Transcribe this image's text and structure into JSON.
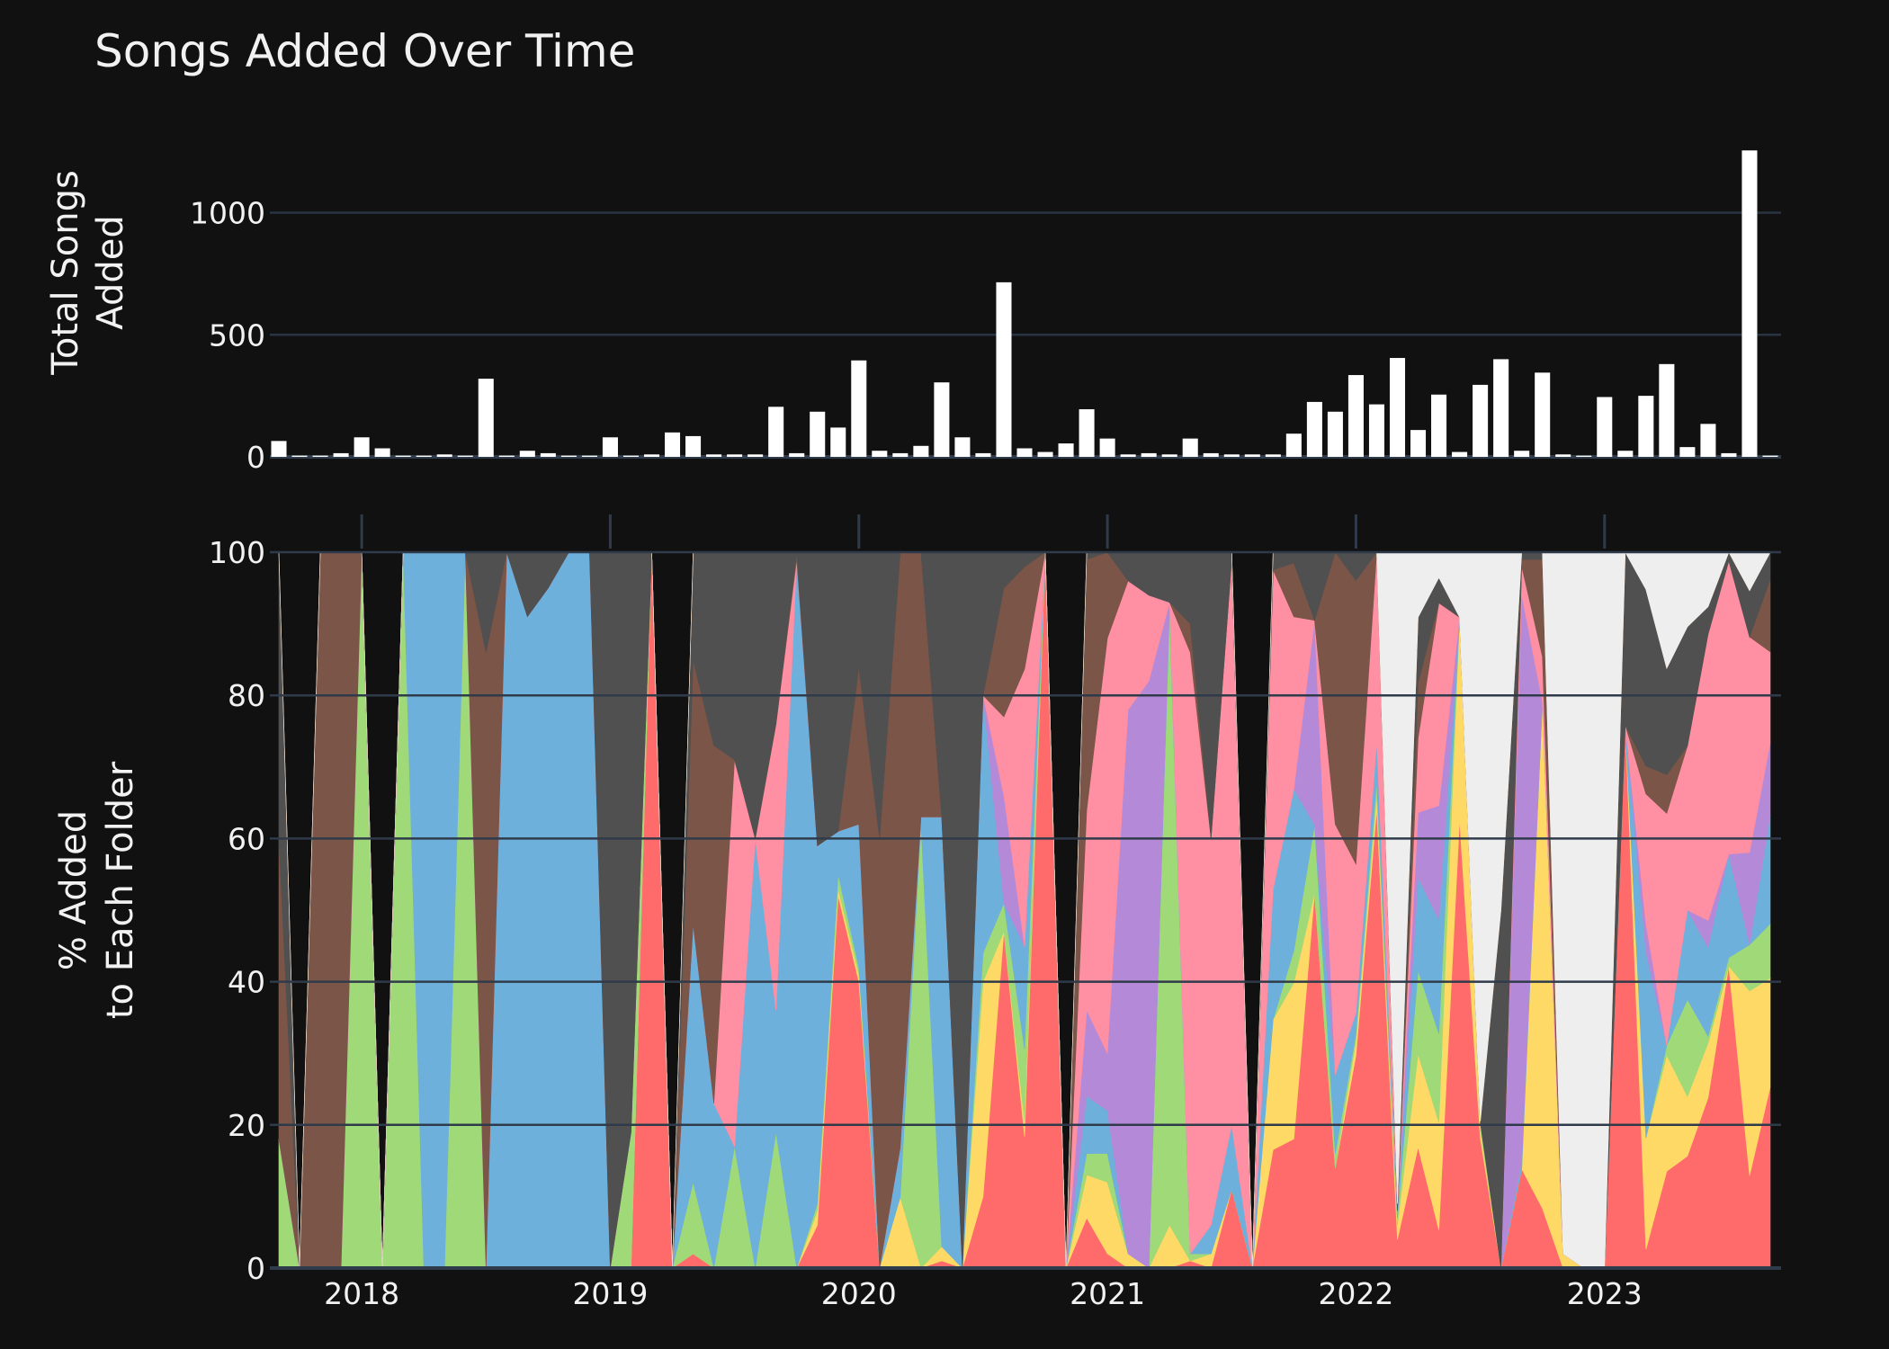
{
  "chart_data": [
    {
      "type": "bar",
      "title": "Songs Added Over Time",
      "ylabel": "Total Songs Added",
      "xlabel": "",
      "ylim": [
        0,
        1250
      ],
      "yticks": [
        0,
        500,
        1000
      ],
      "x_ticks": [
        "2018",
        "2019",
        "2020",
        "2021",
        "2022",
        "2023"
      ],
      "x": [
        "2017-09",
        "2017-10",
        "2017-11",
        "2017-12",
        "2018-01",
        "2018-02",
        "2018-03",
        "2018-04",
        "2018-05",
        "2018-06",
        "2018-07",
        "2018-08",
        "2018-09",
        "2018-10",
        "2018-11",
        "2018-12",
        "2019-01",
        "2019-02",
        "2019-03",
        "2019-04",
        "2019-05",
        "2019-06",
        "2019-07",
        "2019-08",
        "2019-09",
        "2019-10",
        "2019-11",
        "2019-12",
        "2020-01",
        "2020-02",
        "2020-03",
        "2020-04",
        "2020-05",
        "2020-06",
        "2020-07",
        "2020-08",
        "2020-09",
        "2020-10",
        "2020-11",
        "2020-12",
        "2021-01",
        "2021-02",
        "2021-03",
        "2021-04",
        "2021-05",
        "2021-06",
        "2021-07",
        "2021-08",
        "2021-09",
        "2021-10",
        "2021-11",
        "2021-12",
        "2022-01",
        "2022-02",
        "2022-03",
        "2022-04",
        "2022-05",
        "2022-06",
        "2022-07",
        "2022-08",
        "2022-09",
        "2022-10",
        "2022-11",
        "2022-12",
        "2023-01",
        "2023-02",
        "2023-03",
        "2023-04",
        "2023-05",
        "2023-06",
        "2023-07",
        "2023-08",
        "2023-09"
      ],
      "values": [
        65,
        5,
        5,
        15,
        80,
        35,
        5,
        5,
        10,
        5,
        320,
        5,
        25,
        15,
        5,
        5,
        80,
        5,
        10,
        100,
        85,
        10,
        10,
        10,
        205,
        15,
        185,
        120,
        395,
        25,
        15,
        45,
        305,
        80,
        15,
        715,
        35,
        20,
        55,
        195,
        75,
        10,
        15,
        10,
        75,
        15,
        10,
        10,
        10,
        95,
        225,
        185,
        335,
        215,
        405,
        110,
        255,
        20,
        295,
        400,
        25,
        345,
        10,
        5,
        245,
        25,
        250,
        380,
        40,
        135,
        15,
        1255,
        5
      ],
      "grid": true,
      "bar_color": "#ffffff"
    },
    {
      "type": "area",
      "stacked": true,
      "normalized": true,
      "ylabel": "% Added to Each Folder",
      "xlabel": "",
      "ylim": [
        0,
        100
      ],
      "yticks": [
        0,
        20,
        40,
        60,
        80,
        100
      ],
      "x_ticks": [
        "2018",
        "2019",
        "2020",
        "2021",
        "2022",
        "2023"
      ],
      "grid": true,
      "x": [
        "2017-09",
        "2017-10",
        "2017-11",
        "2017-12",
        "2018-01",
        "2018-02",
        "2018-03",
        "2018-04",
        "2018-05",
        "2018-06",
        "2018-07",
        "2018-08",
        "2018-09",
        "2018-10",
        "2018-11",
        "2018-12",
        "2019-01",
        "2019-02",
        "2019-03",
        "2019-04",
        "2019-05",
        "2019-06",
        "2019-07",
        "2019-08",
        "2019-09",
        "2019-10",
        "2019-11",
        "2019-12",
        "2020-01",
        "2020-02",
        "2020-03",
        "2020-04",
        "2020-05",
        "2020-06",
        "2020-07",
        "2020-08",
        "2020-09",
        "2020-10",
        "2020-11",
        "2020-12",
        "2021-01",
        "2021-02",
        "2021-03",
        "2021-04",
        "2021-05",
        "2021-06",
        "2021-07",
        "2021-08",
        "2021-09",
        "2021-10",
        "2021-11",
        "2021-12",
        "2022-01",
        "2022-02",
        "2022-03",
        "2022-04",
        "2022-05",
        "2022-06",
        "2022-07",
        "2022-08",
        "2022-09",
        "2022-10",
        "2022-11",
        "2022-12",
        "2023-01",
        "2023-02",
        "2023-03",
        "2023-04",
        "2023-05",
        "2023-06",
        "2023-07",
        "2023-08",
        "2023-09"
      ],
      "series": [
        {
          "color": "#ff6b6b",
          "values": [
            0,
            0,
            0,
            0,
            0,
            0,
            0,
            0,
            0,
            0,
            0,
            0,
            0,
            0,
            0,
            0,
            0,
            0,
            100,
            0,
            2,
            0,
            0,
            0,
            0,
            0,
            6,
            52,
            40,
            0,
            0,
            0,
            1,
            0,
            10,
            47,
            18,
            100,
            0,
            7,
            2,
            0,
            0,
            0,
            1,
            0,
            11,
            0,
            20,
            24,
            11,
            14,
            30,
            34,
            4,
            13,
            6,
            62,
            16,
            0,
            14,
            8,
            0,
            0,
            0,
            69,
            2,
            10,
            15,
            25,
            35,
            12,
            20
          ]
        },
        {
          "color": "#ffd966",
          "values": [
            0,
            0,
            0,
            0,
            0,
            0,
            0,
            0,
            0,
            0,
            0,
            0,
            0,
            0,
            0,
            0,
            0,
            0,
            0,
            0,
            0,
            0,
            0,
            0,
            0,
            0,
            2,
            1,
            1,
            0,
            10,
            0,
            2,
            0,
            30,
            0,
            2,
            0,
            0,
            6,
            10,
            2,
            0,
            6,
            0,
            2,
            0,
            0,
            22,
            29,
            0,
            0,
            2,
            1,
            2,
            10,
            17,
            28,
            1,
            0,
            0,
            68,
            2,
            0,
            0,
            0,
            12,
            12,
            8,
            8,
            0,
            24,
            12
          ]
        },
        {
          "color": "#a0d977",
          "values": [
            18,
            0,
            0,
            0,
            100,
            0,
            100,
            0,
            0,
            8,
            0,
            0,
            0,
            0,
            0,
            0,
            0,
            19,
            0,
            0,
            10,
            0,
            17,
            0,
            19,
            0,
            1,
            2,
            1,
            0,
            0,
            62,
            0,
            0,
            4,
            4,
            10,
            0,
            0,
            3,
            4,
            0,
            0,
            86,
            1,
            0,
            0,
            0,
            0,
            6,
            2,
            2,
            1,
            1,
            1,
            9,
            14,
            0,
            1,
            0,
            0,
            0,
            0,
            0,
            0,
            0,
            0,
            1,
            13,
            1,
            1,
            6,
            6
          ]
        },
        {
          "color": "#6eb0dc",
          "values": [
            0,
            0,
            0,
            0,
            0,
            0,
            0,
            100,
            100,
            0,
            0,
            100,
            91,
            95,
            100,
            100,
            0,
            0,
            0,
            0,
            36,
            23,
            0,
            60,
            17,
            99,
            50,
            6,
            20,
            0,
            7,
            1,
            60,
            0,
            36,
            0,
            14,
            0,
            0,
            8,
            6,
            0,
            0,
            1,
            0,
            4,
            9,
            0,
            22,
            30,
            0,
            11,
            3,
            3,
            1,
            10,
            18,
            0,
            0,
            0,
            1,
            0,
            0,
            0,
            0,
            0,
            20,
            0,
            12,
            13,
            12,
            0,
            12
          ]
        },
        {
          "color": "#b48ad8",
          "values": [
            0,
            0,
            0,
            0,
            0,
            0,
            0,
            0,
            0,
            0,
            0,
            0,
            0,
            0,
            0,
            0,
            0,
            0,
            0,
            0,
            0,
            0,
            0,
            0,
            0,
            0,
            0,
            0,
            0,
            0,
            0,
            0,
            0,
            0,
            0,
            15,
            0,
            0,
            0,
            12,
            8,
            76,
            82,
            0,
            0,
            0,
            0,
            0,
            0,
            0,
            6,
            0,
            0,
            0,
            0,
            7,
            18,
            0,
            0,
            0,
            80,
            0,
            0,
            0,
            0,
            0,
            3,
            0,
            0,
            4,
            0,
            12,
            8
          ]
        },
        {
          "color": "#ff8fa3",
          "values": [
            0,
            0,
            0,
            0,
            0,
            0,
            0,
            0,
            0,
            0,
            0,
            0,
            0,
            0,
            0,
            0,
            0,
            0,
            0,
            0,
            0,
            0,
            54,
            0,
            40,
            0,
            0,
            0,
            0,
            0,
            0,
            0,
            0,
            0,
            0,
            11,
            38,
            0,
            0,
            28,
            58,
            18,
            12,
            0,
            84,
            54,
            79,
            0,
            54,
            32,
            0,
            35,
            21,
            14,
            0,
            8,
            32,
            0,
            0,
            0,
            4,
            6,
            0,
            0,
            0,
            0,
            14,
            24,
            22,
            42,
            34,
            28,
            10
          ]
        },
        {
          "color": "#7a5548",
          "values": [
            42,
            0,
            100,
            100,
            0,
            0,
            0,
            0,
            0,
            0,
            86,
            0,
            0,
            0,
            0,
            0,
            0,
            0,
            0,
            0,
            37,
            50,
            0,
            0,
            0,
            1,
            0,
            0,
            22,
            60,
            84,
            37,
            0,
            0,
            0,
            18,
            14,
            0,
            0,
            35,
            12,
            0,
            0,
            0,
            4,
            0,
            0,
            0,
            0,
            10,
            0,
            38,
            40,
            0,
            0,
            6,
            0,
            0,
            0,
            0,
            1,
            13,
            0,
            0,
            0,
            0,
            3,
            4,
            0,
            0,
            0,
            0,
            8
          ]
        },
        {
          "color": "#505050",
          "values": [
            40,
            0,
            0,
            0,
            0,
            0,
            0,
            0,
            0,
            0,
            14,
            0,
            9,
            5,
            0,
            0,
            100,
            81,
            0,
            0,
            15,
            27,
            29,
            40,
            24,
            0,
            41,
            39,
            16,
            40,
            0,
            0,
            37,
            100,
            20,
            5,
            2,
            0,
            0,
            1,
            0,
            4,
            6,
            7,
            10,
            40,
            1,
            0,
            3,
            2,
            2,
            0,
            4,
            0,
            1,
            7,
            4,
            0,
            0,
            1,
            1,
            1,
            0,
            0,
            0,
            22,
            19,
            11,
            16,
            4,
            1,
            6,
            3
          ]
        },
        {
          "color": "#ffab5e",
          "values": [
            0,
            0,
            0,
            0,
            0,
            0,
            0,
            0,
            0,
            0,
            0,
            0,
            0,
            0,
            0,
            0,
            0,
            0,
            0,
            0,
            0,
            0,
            0,
            0,
            0,
            0,
            0,
            0,
            0,
            0,
            0,
            0,
            0,
            0,
            0,
            0,
            0,
            0,
            0,
            0,
            0,
            0,
            0,
            0,
            0,
            0,
            0,
            0,
            0,
            0,
            0,
            0,
            0,
            0,
            0,
            0,
            0,
            0,
            0,
            0,
            0,
            0,
            0,
            0,
            0,
            0,
            0,
            0,
            0,
            0,
            0,
            0,
            0
          ]
        },
        {
          "color": "#eeeeee",
          "values": [
            0,
            0,
            0,
            0,
            0,
            0,
            0,
            0,
            0,
            0,
            0,
            0,
            0,
            0,
            0,
            0,
            0,
            0,
            0,
            0,
            0,
            0,
            0,
            0,
            0,
            0,
            0,
            0,
            0,
            0,
            0,
            0,
            0,
            0,
            0,
            0,
            0,
            0,
            0,
            0,
            0,
            0,
            0,
            0,
            0,
            0,
            0,
            0,
            0,
            0,
            0,
            0,
            0,
            0,
            91,
            7,
            4,
            9,
            70,
            1,
            0,
            0,
            98,
            100,
            100,
            0,
            4,
            12,
            10,
            8,
            0,
            5,
            0
          ]
        }
      ]
    }
  ]
}
